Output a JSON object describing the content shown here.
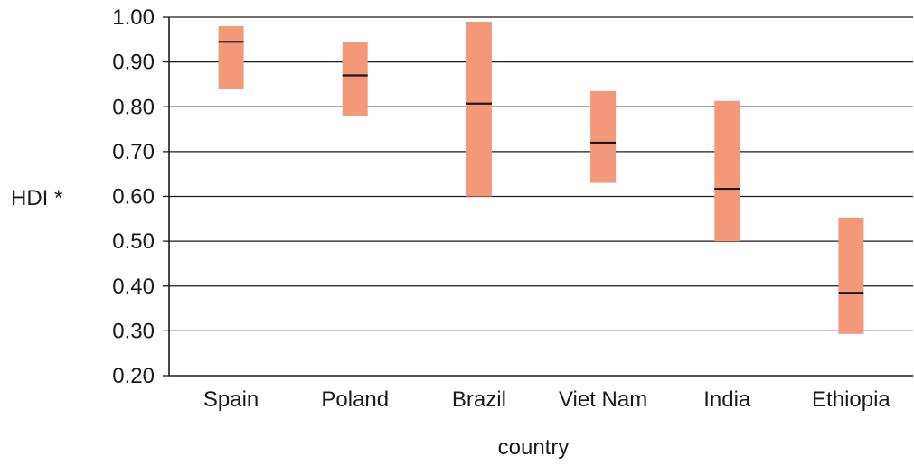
{
  "chart_data": {
    "type": "range-bar",
    "title": "",
    "xlabel": "country",
    "ylabel": "HDI *",
    "ylim": [
      0.2,
      1.0
    ],
    "yticks": [
      "0.20",
      "0.30",
      "0.40",
      "0.50",
      "0.60",
      "0.70",
      "0.80",
      "0.90",
      "1.00"
    ],
    "grid": true,
    "categories": [
      "Spain",
      "Poland",
      "Brazil",
      "Viet Nam",
      "India",
      "Ethiopia"
    ],
    "ranges": [
      {
        "low": 0.84,
        "high": 0.98,
        "mid": 0.945
      },
      {
        "low": 0.78,
        "high": 0.945,
        "mid": 0.87
      },
      {
        "low": 0.6,
        "high": 0.99,
        "mid": 0.807
      },
      {
        "low": 0.63,
        "high": 0.835,
        "mid": 0.72
      },
      {
        "low": 0.5,
        "high": 0.813,
        "mid": 0.617
      },
      {
        "low": 0.293,
        "high": 0.553,
        "mid": 0.385
      }
    ],
    "colors": {
      "bar": "#f4987a",
      "mid_line": "#1a1a1a",
      "grid": "#1a1a1a"
    }
  }
}
